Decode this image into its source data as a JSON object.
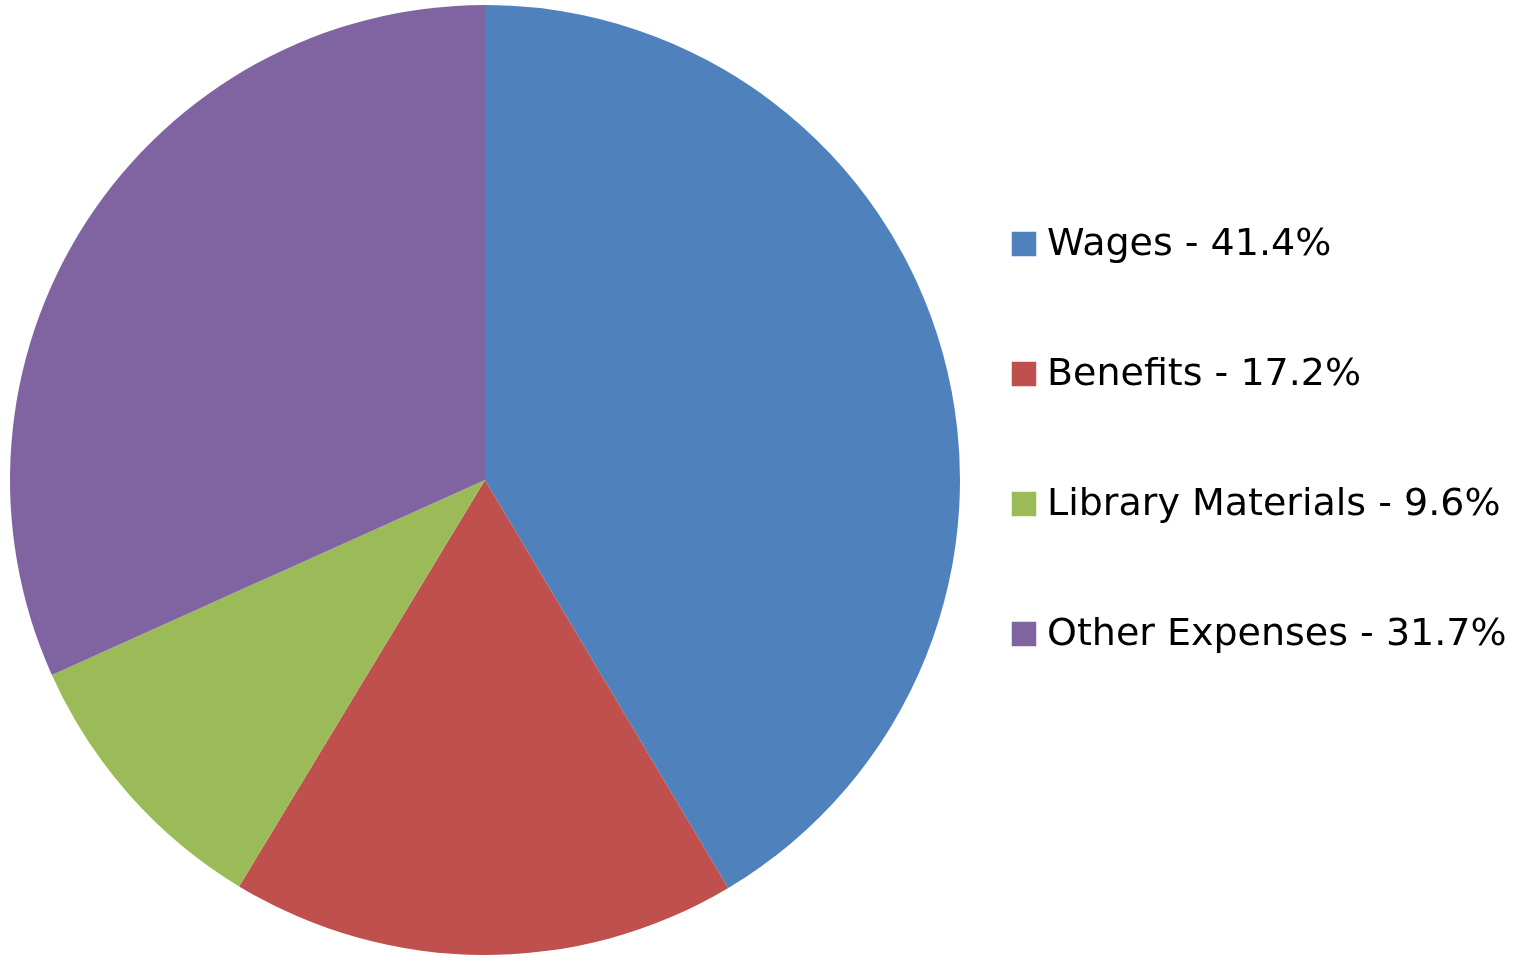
{
  "chart_data": {
    "type": "pie",
    "categories": [
      "Wages - 41.4%",
      "Benefits - 17.2%",
      "Library Materials - 9.6%",
      "Other Expenses - 31.7%"
    ],
    "values": [
      41.4,
      17.2,
      9.6,
      31.7
    ],
    "colors": [
      "#4f81bd",
      "#c0504d",
      "#9bbb59",
      "#8064a2"
    ],
    "legend": "right"
  }
}
